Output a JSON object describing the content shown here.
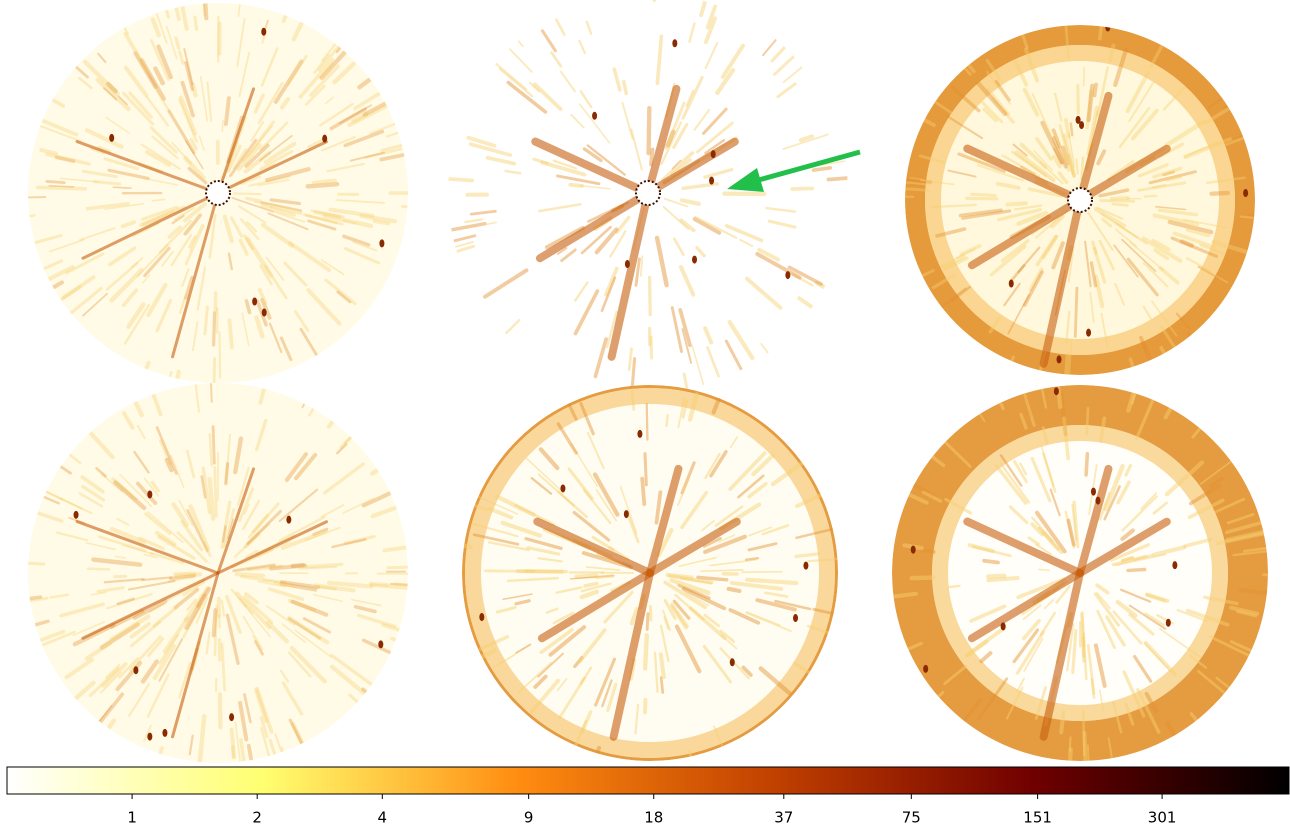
{
  "chart_data": {
    "type": "colorbar",
    "colormap": [
      "#ffffff",
      "#ffff70",
      "#ff8c10",
      "#c04000",
      "#700000",
      "#000000"
    ],
    "log": true,
    "xlim": [
      0.5,
      608
    ],
    "xticks": [
      1,
      2,
      4,
      9,
      18,
      37,
      75,
      151,
      301
    ],
    "arrow_color": "#22c04a"
  }
}
